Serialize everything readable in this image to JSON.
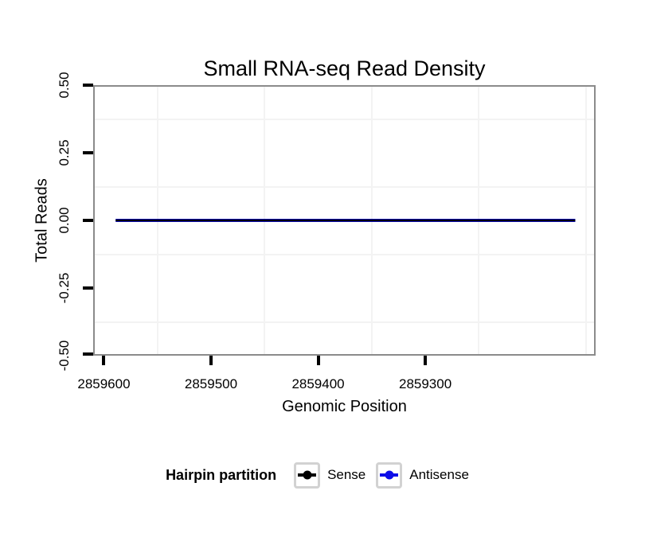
{
  "chart_data": {
    "type": "line",
    "title": "Small RNA-seq Read Density",
    "xlabel": "Genomic Position",
    "ylabel": "Total Reads",
    "x_axis": {
      "range": [
        2859610,
        2859141
      ],
      "reversed": true,
      "ticks": [
        2859600,
        2859500,
        2859400,
        2859300
      ],
      "tick_labels": [
        "2859600",
        "2859500",
        "2859400",
        "2859300"
      ],
      "minor_gridlines": [
        2859550,
        2859450,
        2859350,
        2859250,
        2859150
      ]
    },
    "y_axis": {
      "range": [
        -0.5,
        0.5
      ],
      "ticks": [
        0.5,
        0.25,
        0,
        -0.25,
        -0.5
      ],
      "tick_labels": [
        "0.50",
        "0.25",
        "0.00",
        "-0.25",
        "-0.50"
      ],
      "minor_gridlines": [
        0.375,
        0.125,
        -0.125,
        -0.375
      ]
    },
    "series": [
      {
        "name": "Sense",
        "color": "#000000",
        "linewidth": 2.4,
        "points": [
          [
            2859589,
            0
          ],
          [
            2859160,
            0
          ]
        ]
      },
      {
        "name": "Antisense",
        "color": "#0d0de8",
        "linewidth": 4,
        "points": [
          [
            2859589,
            0
          ],
          [
            2859160,
            0
          ]
        ]
      }
    ],
    "legend": {
      "title": "Hairpin partition",
      "position": "bottom",
      "entries": [
        {
          "label": "Sense",
          "color": "#000000"
        },
        {
          "label": "Antisense",
          "color": "#0d0de8"
        }
      ]
    },
    "style": {
      "panel_border_color": "#8b8b8b",
      "minor_grid_color": "#f3f3f3",
      "tick_color": "#000000",
      "background": "#ffffff",
      "legend_key_border": "#d2d2d2"
    }
  }
}
